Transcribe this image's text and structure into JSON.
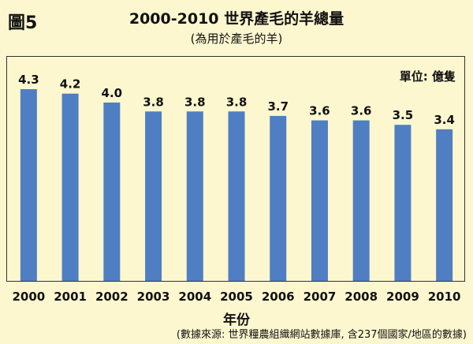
{
  "figure_label": "圖5",
  "chart_data": {
    "type": "bar",
    "title": "2000-2010 世界產毛的羊總量",
    "subtitle": "(為用於產毛的羊)",
    "unit_label": "單位: 億隻",
    "xlabel": "年份",
    "ylabel": "",
    "categories": [
      "2000",
      "2001",
      "2002",
      "2003",
      "2004",
      "2005",
      "2006",
      "2007",
      "2008",
      "2009",
      "2010"
    ],
    "values": [
      4.3,
      4.2,
      4.0,
      3.8,
      3.8,
      3.8,
      3.7,
      3.6,
      3.6,
      3.5,
      3.4
    ],
    "value_labels": [
      "4.3",
      "4.2",
      "4.0",
      "3.8",
      "3.8",
      "3.8",
      "3.7",
      "3.6",
      "3.6",
      "3.5",
      "3.4"
    ],
    "ylim": [
      0,
      4.3
    ],
    "grid": false,
    "bar_color": "#4f7fc2",
    "source": "(數據來源: 世界糧農組織網站數據庫, 含237個國家/地區的數據)"
  }
}
